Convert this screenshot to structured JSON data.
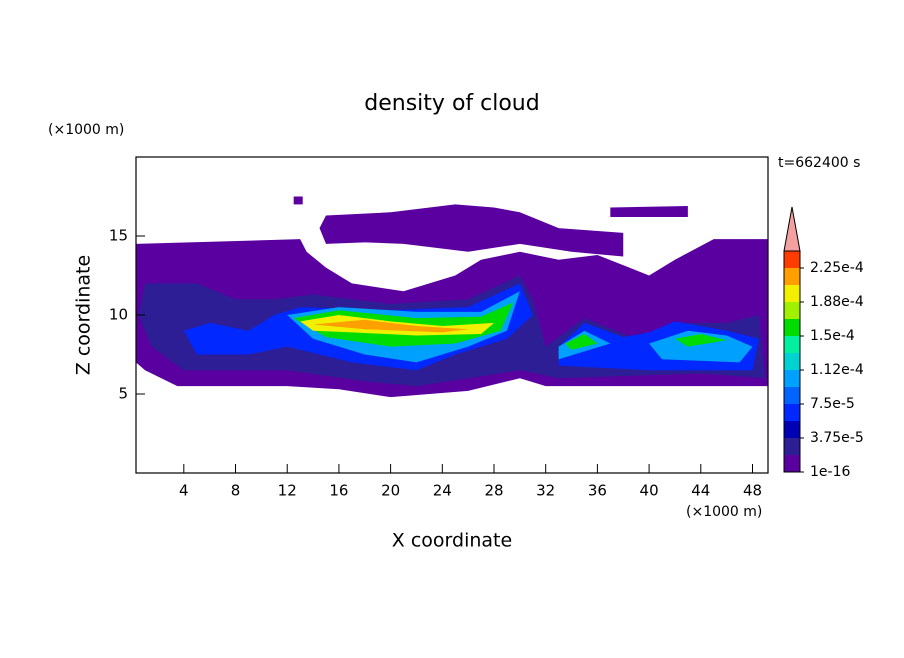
{
  "chart_data": {
    "type": "contour",
    "title": "density of cloud",
    "x_label": "X coordinate",
    "y_label": "Z coordinate",
    "x_unit": "(×1000 m)",
    "y_unit": "(×1000 m)",
    "time_label": "t=662400 s",
    "xlim": [
      0.3,
      49.2
    ],
    "ylim": [
      0,
      20
    ],
    "xticks": [
      4,
      8,
      12,
      16,
      20,
      24,
      28,
      32,
      36,
      40,
      44,
      48
    ],
    "yticks": [
      5,
      10,
      15
    ],
    "colorbar": {
      "clim": [
        1e-16,
        0.00024375
      ],
      "colors": [
        "#5a00a0",
        "#2d1e96",
        "#0000b4",
        "#0028ff",
        "#0064ff",
        "#00a0ff",
        "#00d2d2",
        "#00f0a0",
        "#00dc00",
        "#a0f000",
        "#f0f000",
        "#ffa000",
        "#ff3c00"
      ],
      "extend_color": "#f4a0a0",
      "ticks": [
        {
          "value": 1e-16,
          "label": "1e-16"
        },
        {
          "value": 3.75e-05,
          "label": "3.75e-5"
        },
        {
          "value": 7.5e-05,
          "label": "7.5e-5"
        },
        {
          "value": 0.0001125,
          "label": "1.12e-4"
        },
        {
          "value": 0.00015,
          "label": "1.5e-4"
        },
        {
          "value": 0.0001875,
          "label": "1.88e-4"
        },
        {
          "value": 0.000225,
          "label": "2.25e-4"
        }
      ]
    },
    "regions": [
      {
        "level": 1e-16,
        "points": [
          [
            0.3,
            14.5
          ],
          [
            13,
            14.8
          ],
          [
            13.5,
            14
          ],
          [
            15,
            13
          ],
          [
            17,
            12
          ],
          [
            21,
            11.5
          ],
          [
            25,
            12.5
          ],
          [
            27,
            13.5
          ],
          [
            30,
            14
          ],
          [
            33,
            13.5
          ],
          [
            36,
            13.8
          ],
          [
            40,
            12.5
          ],
          [
            42,
            13.5
          ],
          [
            45,
            14.8
          ],
          [
            49.2,
            14.8
          ],
          [
            49.2,
            5.5
          ],
          [
            44,
            5.5
          ],
          [
            32,
            5.5
          ],
          [
            30,
            6
          ],
          [
            26,
            5.2
          ],
          [
            20,
            4.8
          ],
          [
            16,
            5.3
          ],
          [
            12,
            5.5
          ],
          [
            3.5,
            5.5
          ],
          [
            1,
            6.5
          ],
          [
            0.3,
            7
          ]
        ]
      },
      {
        "level": 1e-16,
        "points": [
          [
            15,
            16.3
          ],
          [
            20,
            16.5
          ],
          [
            25,
            17
          ],
          [
            28,
            16.8
          ],
          [
            30,
            16.5
          ],
          [
            33,
            15.5
          ],
          [
            38,
            15.2
          ],
          [
            38,
            13.7
          ],
          [
            34,
            14
          ],
          [
            30,
            14.5
          ],
          [
            26,
            14
          ],
          [
            21,
            14.5
          ],
          [
            18,
            14.6
          ],
          [
            15,
            14.5
          ],
          [
            14.5,
            15.5
          ]
        ]
      },
      {
        "level": 1e-16,
        "points": [
          [
            37,
            16.8
          ],
          [
            43,
            16.9
          ],
          [
            43,
            16.2
          ],
          [
            37,
            16.2
          ]
        ]
      },
      {
        "level": 1e-16,
        "points": [
          [
            12.5,
            17.5
          ],
          [
            13.2,
            17.5
          ],
          [
            13.2,
            17
          ],
          [
            12.5,
            17
          ]
        ]
      },
      {
        "level": 3.75e-05,
        "points": [
          [
            1,
            12
          ],
          [
            5,
            12
          ],
          [
            8,
            11
          ],
          [
            11,
            11
          ],
          [
            14,
            11.3
          ],
          [
            20,
            10.7
          ],
          [
            26,
            11
          ],
          [
            30,
            12.5
          ],
          [
            31,
            11
          ],
          [
            32,
            8
          ],
          [
            35,
            9.8
          ],
          [
            39,
            8.5
          ],
          [
            42,
            9.5
          ],
          [
            46,
            9.5
          ],
          [
            48.5,
            10
          ],
          [
            49,
            6
          ],
          [
            44,
            6.3
          ],
          [
            33,
            6
          ],
          [
            30,
            6.5
          ],
          [
            26,
            6
          ],
          [
            22,
            5.5
          ],
          [
            18,
            5.8
          ],
          [
            12,
            6.5
          ],
          [
            4,
            6.5
          ],
          [
            1.5,
            8
          ],
          [
            0.5,
            10
          ]
        ]
      },
      {
        "level": 7.5e-05,
        "points": [
          [
            4,
            9
          ],
          [
            6,
            9.5
          ],
          [
            9,
            9
          ],
          [
            11,
            10
          ],
          [
            13,
            10.5
          ],
          [
            20,
            10.3
          ],
          [
            26,
            10.5
          ],
          [
            30,
            12
          ],
          [
            31,
            10
          ],
          [
            29,
            8.5
          ],
          [
            25,
            7.5
          ],
          [
            22,
            6.5
          ],
          [
            17,
            7
          ],
          [
            12,
            8
          ],
          [
            9,
            7.5
          ],
          [
            5,
            7.5
          ]
        ]
      },
      {
        "level": 7.5e-05,
        "points": [
          [
            33,
            8
          ],
          [
            35,
            9.5
          ],
          [
            38,
            8.6
          ],
          [
            40,
            8.9
          ],
          [
            42,
            9.6
          ],
          [
            46,
            9
          ],
          [
            48.5,
            8.5
          ],
          [
            48,
            6.5
          ],
          [
            40,
            6.5
          ],
          [
            33,
            6.8
          ]
        ]
      },
      {
        "level": 0.0001125,
        "points": [
          [
            12,
            10
          ],
          [
            16,
            10.5
          ],
          [
            22,
            10.2
          ],
          [
            27,
            10.2
          ],
          [
            30,
            11.5
          ],
          [
            29,
            9
          ],
          [
            26,
            8
          ],
          [
            22,
            7
          ],
          [
            18,
            7.5
          ],
          [
            14,
            8.5
          ]
        ]
      },
      {
        "level": 0.0001125,
        "points": [
          [
            33,
            8
          ],
          [
            35,
            9
          ],
          [
            37,
            8.2
          ],
          [
            33,
            7.2
          ]
        ]
      },
      {
        "level": 0.0001125,
        "points": [
          [
            40,
            8.2
          ],
          [
            43,
            9
          ],
          [
            46,
            8.7
          ],
          [
            48,
            8
          ],
          [
            47,
            7
          ],
          [
            41,
            7.2
          ]
        ]
      },
      {
        "level": 0.00016875,
        "points": [
          [
            12.5,
            9.8
          ],
          [
            16,
            10.3
          ],
          [
            22,
            9.8
          ],
          [
            27,
            9.9
          ],
          [
            29.5,
            10.8
          ],
          [
            28.5,
            9
          ],
          [
            25,
            8.2
          ],
          [
            20,
            8
          ],
          [
            15,
            8.6
          ]
        ]
      },
      {
        "level": 0.00016875,
        "points": [
          [
            33.5,
            8.2
          ],
          [
            35,
            8.8
          ],
          [
            36,
            8.2
          ],
          [
            34,
            7.8
          ]
        ]
      },
      {
        "level": 0.00016875,
        "points": [
          [
            42,
            8.5
          ],
          [
            44,
            8.8
          ],
          [
            46,
            8.4
          ],
          [
            43,
            8
          ]
        ]
      },
      {
        "level": 0.00020625,
        "points": [
          [
            13,
            9.6
          ],
          [
            16,
            10
          ],
          [
            20,
            9.6
          ],
          [
            24,
            9.3
          ],
          [
            28,
            9.5
          ],
          [
            27,
            8.8
          ],
          [
            22,
            8.7
          ],
          [
            17,
            8.9
          ],
          [
            14,
            9
          ]
        ]
      },
      {
        "level": 0.000225,
        "points": [
          [
            14,
            9.4
          ],
          [
            18,
            9.7
          ],
          [
            22,
            9.3
          ],
          [
            26,
            9.1
          ],
          [
            24,
            8.9
          ],
          [
            18,
            9.1
          ]
        ]
      }
    ]
  }
}
